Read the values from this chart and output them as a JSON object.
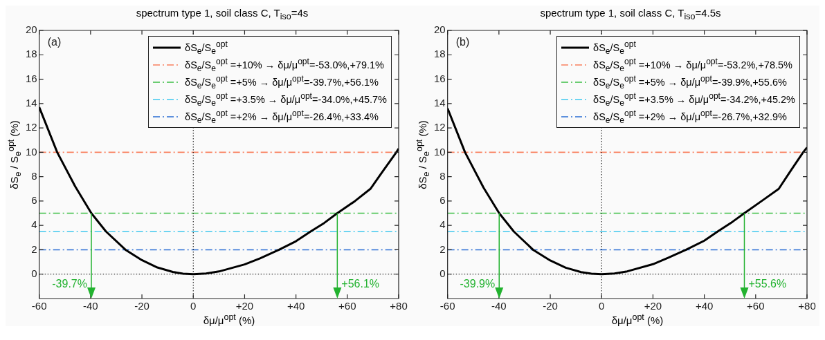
{
  "chart_data": [
    {
      "type": "line",
      "title": "spectrum type 1, soil class C, T$_{iso}$=4s",
      "xlabel": "δμ/μ$^{opt}$  (%)",
      "ylabel": "δS$_{e}$ / S$_{e}$$^{opt}$  (%)",
      "xlim": [
        -60,
        80
      ],
      "xticks": [
        -60,
        -40,
        -20,
        0,
        {
          "value": 20,
          "label": "+20"
        },
        {
          "value": 40,
          "label": "+40"
        },
        {
          "value": 60,
          "label": "+60"
        },
        {
          "value": 80,
          "label": "+80"
        }
      ],
      "ylim": [
        -2,
        20
      ],
      "yticks": [
        0,
        2,
        4,
        6,
        8,
        10,
        12,
        14,
        16,
        18,
        20
      ],
      "grid": false,
      "legend": "top right",
      "marker": "none",
      "series": [
        {
          "name": "δS$_{e}$/S$_{e}$$^{opt}$",
          "color": "#000000",
          "line_style": "solid",
          "x": [
            -60,
            -53,
            -46,
            -39.7,
            -34,
            -26.4,
            -20,
            -14,
            -8,
            -4,
            0,
            5,
            10,
            20,
            26,
            33.4,
            40,
            45.7,
            51,
            56.1,
            63,
            69,
            74,
            79.1,
            80
          ],
          "values": [
            13.7,
            10,
            7.2,
            5,
            3.5,
            2,
            1.15,
            0.55,
            0.18,
            0.04,
            0,
            0.06,
            0.22,
            0.8,
            1.3,
            2,
            2.7,
            3.5,
            4.2,
            5,
            6,
            7,
            8.5,
            10,
            10.3
          ]
        }
      ],
      "ref_lines": [
        {
          "axis": "y",
          "value": 10,
          "color": "#f9805f",
          "line_style": "dashed",
          "label": "δS$_{e}$/S$_{e}$$^{opt}$ =+10% → δμ/μ$^{opt}$=-53.0%,+79.1%"
        },
        {
          "axis": "y",
          "value": 5,
          "color": "#3dbf46",
          "line_style": "dashed",
          "label": "δS$_{e}$/S$_{e}$$^{opt}$ =+5% → δμ/μ$^{opt}$=-39.7%,+56.1%"
        },
        {
          "axis": "y",
          "value": 3.5,
          "color": "#3fc8ee",
          "line_style": "dashed",
          "label": "δS$_{e}$/S$_{e}$$^{opt}$ =+3.5% → δμ/μ$^{opt}$=-34.0%,+45.7%"
        },
        {
          "axis": "y",
          "value": 2,
          "color": "#2a6dd4",
          "line_style": "dashed",
          "label": "δS$_{e}$/S$_{e}$$^{opt}$ =+2% → δμ/μ$^{opt}$=-26.4%,+33.4%"
        },
        {
          "axis": "x",
          "value": 0,
          "color": "#000000",
          "line_style": "dotted"
        },
        {
          "axis": "y",
          "value": 0,
          "color": "#000000",
          "line_style": "dotted"
        }
      ],
      "annotations": [
        "(a)",
        {
          "text": "-39.7%",
          "x": -39.7,
          "y": 5
        },
        {
          "text": "+56.1%",
          "x": 56.1,
          "y": 5
        }
      ]
    },
    {
      "type": "line",
      "title": "spectrum type 1, soil class C, T$_{iso}$=4.5s",
      "xlabel": "δμ/μ$^{opt}$  (%)",
      "ylabel": "δS$_{e}$ / S$_{e}$$^{opt}$  (%)",
      "xlim": [
        -60,
        80
      ],
      "xticks": [
        -60,
        -40,
        -20,
        0,
        {
          "value": 20,
          "label": "+20"
        },
        {
          "value": 40,
          "label": "+40"
        },
        {
          "value": 60,
          "label": "+60"
        },
        {
          "value": 80,
          "label": "+80"
        }
      ],
      "ylim": [
        -2,
        20
      ],
      "yticks": [
        0,
        2,
        4,
        6,
        8,
        10,
        12,
        14,
        16,
        18,
        20
      ],
      "grid": false,
      "legend": "top right",
      "marker": "none",
      "series": [
        {
          "name": "δS$_{e}$/S$_{e}$$^{opt}$",
          "color": "#000000",
          "line_style": "solid",
          "x": [
            -60,
            -53.2,
            -46,
            -39.9,
            -34.2,
            -26.7,
            -20,
            -14,
            -8,
            -4,
            0,
            5,
            10,
            20,
            26,
            32.9,
            40,
            45.2,
            51,
            55.6,
            63,
            69,
            74,
            78.5,
            80
          ],
          "values": [
            13.6,
            10,
            7.1,
            5,
            3.5,
            2,
            1.12,
            0.53,
            0.17,
            0.04,
            0,
            0.06,
            0.23,
            0.82,
            1.35,
            2,
            2.75,
            3.5,
            4.3,
            5,
            6.1,
            7,
            8.6,
            10,
            10.4
          ]
        }
      ],
      "ref_lines": [
        {
          "axis": "y",
          "value": 10,
          "color": "#f9805f",
          "line_style": "dashed",
          "label": "δS$_{e}$/S$_{e}$$^{opt}$ =+10% → δμ/μ$^{opt}$=-53.2%,+78.5%"
        },
        {
          "axis": "y",
          "value": 5,
          "color": "#3dbf46",
          "line_style": "dashed",
          "label": "δS$_{e}$/S$_{e}$$^{opt}$ =+5% → δμ/μ$^{opt}$=-39.9%,+55.6%"
        },
        {
          "axis": "y",
          "value": 3.5,
          "color": "#3fc8ee",
          "line_style": "dashed",
          "label": "δS$_{e}$/S$_{e}$$^{opt}$ =+3.5% → δμ/μ$^{opt}$=-34.2%,+45.2%"
        },
        {
          "axis": "y",
          "value": 2,
          "color": "#2a6dd4",
          "line_style": "dashed",
          "label": "δS$_{e}$/S$_{e}$$^{opt}$ =+2% → δμ/μ$^{opt}$=-26.7%,+32.9%"
        },
        {
          "axis": "x",
          "value": 0,
          "color": "#000000",
          "line_style": "dotted"
        },
        {
          "axis": "y",
          "value": 0,
          "color": "#000000",
          "line_style": "dotted"
        }
      ],
      "annotations": [
        "(b)",
        {
          "text": "-39.9%",
          "x": -39.9,
          "y": 5
        },
        {
          "text": "+55.6%",
          "x": 55.6,
          "y": 5
        }
      ]
    }
  ]
}
